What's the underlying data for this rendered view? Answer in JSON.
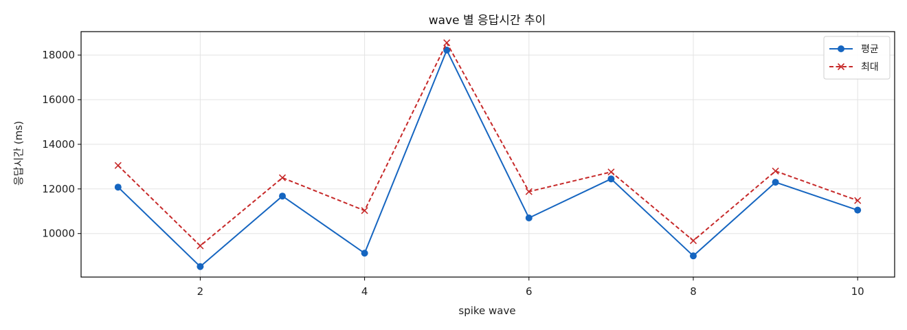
{
  "chart_data": {
    "type": "line",
    "title": "wave 별 응답시간 추이",
    "xlabel": "spike wave",
    "ylabel": "응답시간 (ms)",
    "x": [
      1,
      2,
      3,
      4,
      5,
      6,
      7,
      8,
      9,
      10
    ],
    "xticks": [
      2,
      4,
      6,
      8,
      10
    ],
    "yticks": [
      10000,
      12000,
      14000,
      16000,
      18000
    ],
    "xlim": [
      0.55,
      10.45
    ],
    "ylim": [
      8050,
      19050
    ],
    "grid": true,
    "legend_position": "top-right",
    "series": [
      {
        "name": "평균",
        "color": "#1565c0",
        "line_style": "solid",
        "marker": "circle",
        "values": [
          12080,
          8520,
          11680,
          9120,
          18220,
          10700,
          12450,
          9000,
          12300,
          11050
        ]
      },
      {
        "name": "최대",
        "color": "#c62828",
        "line_style": "dashed",
        "marker": "x",
        "values": [
          13050,
          9450,
          12500,
          11030,
          18550,
          11880,
          12760,
          9680,
          12800,
          11480
        ]
      }
    ]
  }
}
